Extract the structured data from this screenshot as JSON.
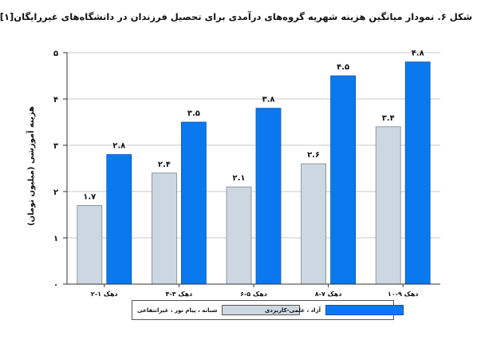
{
  "caption": "شکل ۶. نمودار میانگین هزینه شهریه گروه‌های درآمدی برای تحصیل فرزندان در دانشگاه‌های غیررایگان[۱]",
  "chart_data": {
    "type": "bar",
    "ylabel": "هزینه آموزشی (میلیون تومان)",
    "xlabel": "",
    "ylim": [
      0,
      5
    ],
    "yticks": [
      0,
      1,
      2,
      3,
      4,
      5
    ],
    "ytick_labels": [
      "۰",
      "۱",
      "۲",
      "۳",
      "۴",
      "۵"
    ],
    "grid": "horizontal",
    "legend_position": "bottom",
    "categories": [
      "دهک ۱-۲",
      "دهک ۳-۴",
      "دهک ۵-۶",
      "دهک ۷-۸",
      "دهک ۹-۱۰"
    ],
    "series": [
      {
        "name": "شبانه ، پیام نور ، غیرانتفاعی",
        "color": "#cdd7e1",
        "values": [
          1.7,
          2.4,
          2.1,
          2.6,
          3.4
        ],
        "value_labels": [
          "۱.۷",
          "۲.۴",
          "۲.۱",
          "۲.۶",
          "۳.۴"
        ]
      },
      {
        "name": "آزاد ، علمی-کاربردی",
        "color": "#0a78ee",
        "values": [
          2.8,
          3.5,
          3.8,
          4.5,
          4.8
        ],
        "value_labels": [
          "۲.۸",
          "۳.۵",
          "۳.۸",
          "۴.۵",
          "۴.۸"
        ]
      }
    ]
  }
}
